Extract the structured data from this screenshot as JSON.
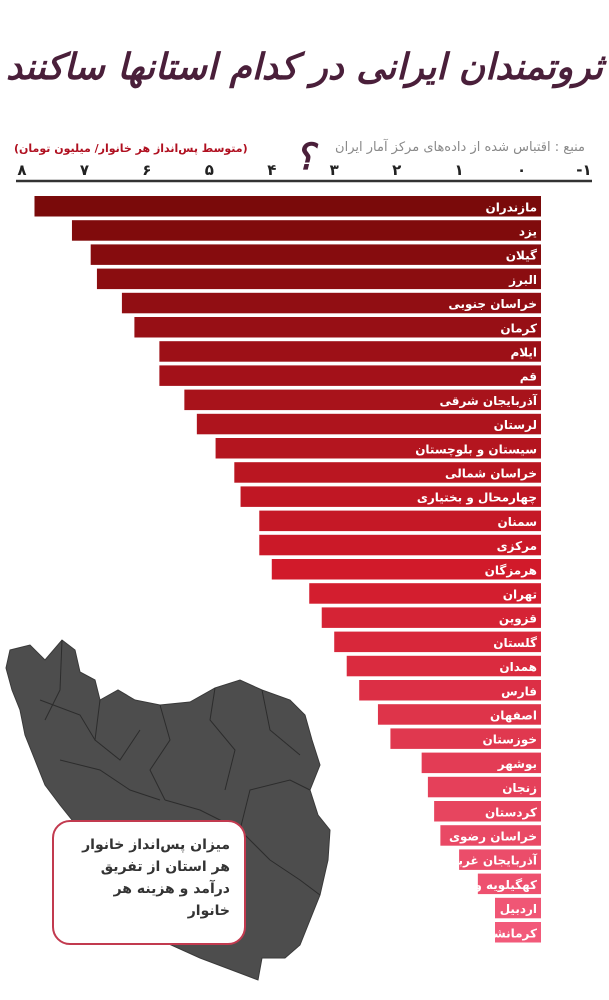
{
  "title": "ثروتمندان ایرانی در کدام استانها ساکنند ؟",
  "source_note": "منبع : اقتباس شده از داده‌های مرکز آمار ایران",
  "unit_label": "(متوسط پس‌انداز هر خانوار/ میلیون تومان)",
  "map_caption": {
    "line1": "میزان پس‌انداز خانوار",
    "line2": "هر استان از تفریق",
    "line3": "درآمد و هزینه هر خانوار"
  },
  "colors": {
    "bar_dark": "#7a0a0a",
    "bar_mid": "#d11a2a",
    "bar_light": "#f25a7a",
    "map": "#4d4d4d",
    "text_accent": "#b01020"
  },
  "chart_data": {
    "type": "bar",
    "orientation": "horizontal",
    "direction": "right-to-left",
    "title": "ثروتمندان ایرانی در کدام استانها ساکنند ؟",
    "xlabel": "(متوسط پس‌انداز هر خانوار/ میلیون تومان)",
    "xlim": [
      -1,
      8
    ],
    "x_ticks": [
      {
        "value": 8,
        "label": "۸"
      },
      {
        "value": 7,
        "label": "۷"
      },
      {
        "value": 6,
        "label": "۶"
      },
      {
        "value": 5,
        "label": "۵"
      },
      {
        "value": 4,
        "label": "۴"
      },
      {
        "value": 3,
        "label": "۳"
      },
      {
        "value": 2,
        "label": "۲"
      },
      {
        "value": 1,
        "label": "۱"
      },
      {
        "value": 0,
        "label": "۰"
      },
      {
        "value": -1,
        "label": "-۱"
      }
    ],
    "categories": [
      "مازندران",
      "یزد",
      "گیلان",
      "البرز",
      "خراسان جنوبی",
      "کرمان",
      "ایلام",
      "قم",
      "آذربایجان شرقی",
      "لرستان",
      "سیستان و بلوچستان",
      "خراسان شمالی",
      "چهارمحال و بختیاری",
      "سمنان",
      "مرکزی",
      "هرمزگان",
      "تهران",
      "قزوین",
      "گلستان",
      "همدان",
      "فارس",
      "اصفهان",
      "خوزستان",
      "بوشهر",
      "زنجان",
      "کردستان",
      "خراسان رضوی",
      "آذربایجان غربی",
      "کهگیلویه و بویراحمد",
      "اردبیل",
      "کرمانشاه"
    ],
    "values": [
      7.8,
      7.2,
      6.9,
      6.8,
      6.4,
      6.2,
      5.8,
      5.8,
      5.4,
      5.2,
      4.9,
      4.6,
      4.5,
      4.2,
      4.2,
      4.0,
      3.4,
      3.2,
      3.0,
      2.8,
      2.6,
      2.3,
      2.1,
      1.6,
      1.5,
      1.4,
      1.3,
      1.0,
      0.7,
      0.2,
      0.3
    ]
  }
}
